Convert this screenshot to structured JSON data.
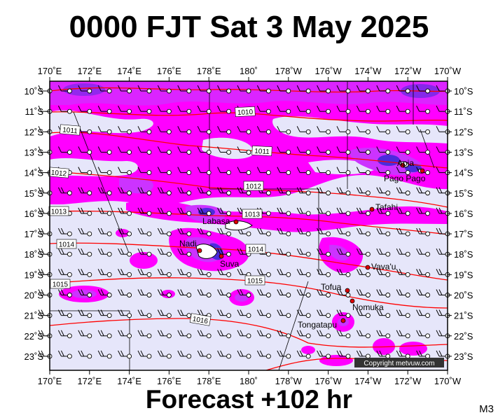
{
  "title": "0000 FJT Sat 3 May 2025",
  "footer": "Forecast +102 hr",
  "model_code": "M3",
  "copyright": "Copyright metvuw.com",
  "lon_labels": [
    "170˚E",
    "172˚E",
    "174˚E",
    "176˚E",
    "178˚E",
    "180˚",
    "178˚W",
    "176˚W",
    "174˚W",
    "172˚W",
    "170˚W"
  ],
  "lat_labels": [
    "10˚S",
    "11˚S",
    "12˚S",
    "13˚S",
    "14˚S",
    "15˚S",
    "16˚S",
    "17˚S",
    "18˚S",
    "19˚S",
    "20˚S",
    "21˚S",
    "22˚S",
    "23˚S"
  ],
  "isobar_labels": [
    "1010",
    "1011",
    "1011",
    "1012",
    "1012",
    "1013",
    "1013",
    "1014",
    "1014",
    "1015",
    "1015",
    "1016"
  ],
  "places": [
    {
      "name": "Apia"
    },
    {
      "name": "Pago Pago"
    },
    {
      "name": "Tafahi"
    },
    {
      "name": "Labasa"
    },
    {
      "name": "Nadi"
    },
    {
      "name": "Suva"
    },
    {
      "name": "Vava'u"
    },
    {
      "name": "Tofua"
    },
    {
      "name": "Nomuka"
    },
    {
      "name": "Tongatapu"
    }
  ],
  "colors": {
    "background": "#e6e6fa",
    "precip_light": "#ff00ff",
    "precip_medium": "#cc33ff",
    "precip_heavy": "#4b2bdc",
    "isobar": "#ff0000",
    "place_marker": "#dd0000"
  }
}
